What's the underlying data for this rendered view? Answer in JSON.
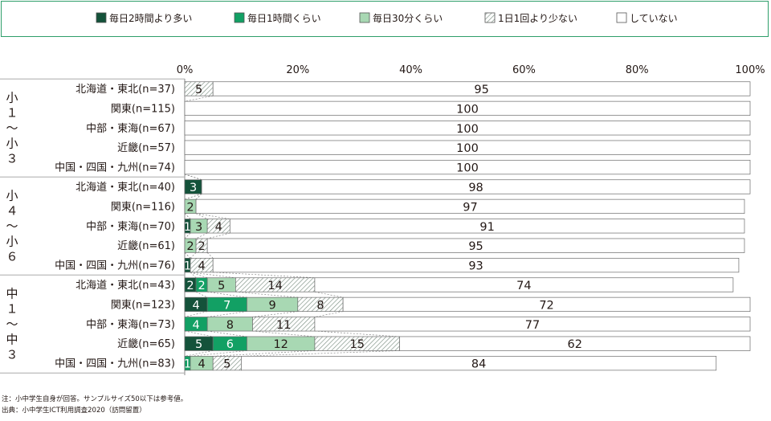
{
  "chart_data": {
    "type": "bar",
    "orientation": "horizontal",
    "stacked": true,
    "x_axis": {
      "min": 0,
      "max": 100,
      "ticks": [
        "0%",
        "20%",
        "40%",
        "60%",
        "80%",
        "100%"
      ]
    },
    "legend": [
      {
        "name": "毎日2時間より多い",
        "color": "#14523a",
        "pattern": "solid"
      },
      {
        "name": "毎日1時間くらい",
        "color": "#12a064",
        "pattern": "solid"
      },
      {
        "name": "毎日30分くらい",
        "color": "#a8d8b3",
        "pattern": "solid"
      },
      {
        "name": "1日1回より少ない",
        "color": "#ffffff",
        "pattern": "hatch"
      },
      {
        "name": "していない",
        "color": "#ffffff",
        "pattern": "solid"
      }
    ],
    "groups": [
      {
        "label": [
          "小",
          "１",
          "〜",
          "小",
          "３"
        ],
        "rows": [
          {
            "label": "北海道・東北(n=37)",
            "values": [
              0,
              0,
              0,
              5,
              95
            ]
          },
          {
            "label": "関東(n=115)",
            "values": [
              0,
              0,
              0,
              0,
              100
            ]
          },
          {
            "label": "中部・東海(n=67)",
            "values": [
              0,
              0,
              0,
              0,
              100
            ]
          },
          {
            "label": "近畿(n=57)",
            "values": [
              0,
              0,
              0,
              0,
              100
            ]
          },
          {
            "label": "中国・四国・九州(n=74)",
            "values": [
              0,
              0,
              0,
              0,
              100
            ]
          }
        ]
      },
      {
        "label": [
          "小",
          "４",
          "〜",
          "小",
          "６"
        ],
        "rows": [
          {
            "label": "北海道・東北(n=40)",
            "values": [
              3,
              0,
              0,
              0,
              98
            ]
          },
          {
            "label": "関東(n=116)",
            "values": [
              0,
              0,
              2,
              0,
              97
            ]
          },
          {
            "label": "中部・東海(n=70)",
            "values": [
              1,
              0,
              3,
              4,
              91
            ]
          },
          {
            "label": "近畿(n=61)",
            "values": [
              0,
              0,
              2,
              2,
              95
            ]
          },
          {
            "label": "中国・四国・九州(n=76)",
            "values": [
              1,
              0,
              0,
              4,
              93
            ]
          }
        ]
      },
      {
        "label": [
          "中",
          "１",
          "〜",
          "中",
          "３"
        ],
        "rows": [
          {
            "label": "北海道・東北(n=43)",
            "values": [
              2,
              2,
              5,
              14,
              74
            ]
          },
          {
            "label": "関東(n=123)",
            "values": [
              4,
              7,
              9,
              8,
              72
            ]
          },
          {
            "label": "中部・東海(n=73)",
            "values": [
              0,
              4,
              8,
              11,
              77
            ]
          },
          {
            "label": "近畿(n=65)",
            "values": [
              5,
              6,
              12,
              15,
              62
            ]
          },
          {
            "label": "中国・四国・九州(n=83)",
            "values": [
              0,
              1,
              4,
              5,
              84
            ]
          }
        ]
      }
    ]
  },
  "notes": [
    "注：小中学生自身が回答。サンプルサイズ50以下は参考値。",
    "出典：小中学生ICT利用調査2020（訪問留置）"
  ]
}
